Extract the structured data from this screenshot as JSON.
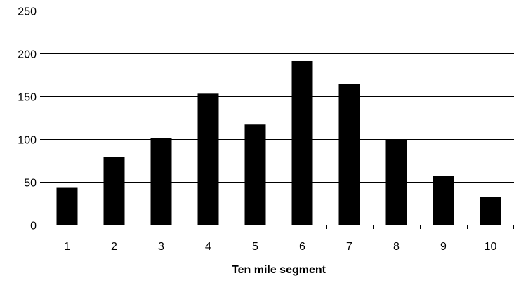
{
  "chart_data": {
    "type": "bar",
    "title": "",
    "xlabel": "Ten mile segment",
    "ylabel": "",
    "categories": [
      "1",
      "2",
      "3",
      "4",
      "5",
      "6",
      "7",
      "8",
      "9",
      "10"
    ],
    "values": [
      43,
      79,
      101,
      153,
      117,
      191,
      164,
      99,
      57,
      32
    ],
    "ylim": [
      0,
      250
    ],
    "yticks": [
      0,
      50,
      100,
      150,
      200,
      250
    ],
    "grid": true,
    "legend": "none",
    "bar_color": "#000000"
  }
}
